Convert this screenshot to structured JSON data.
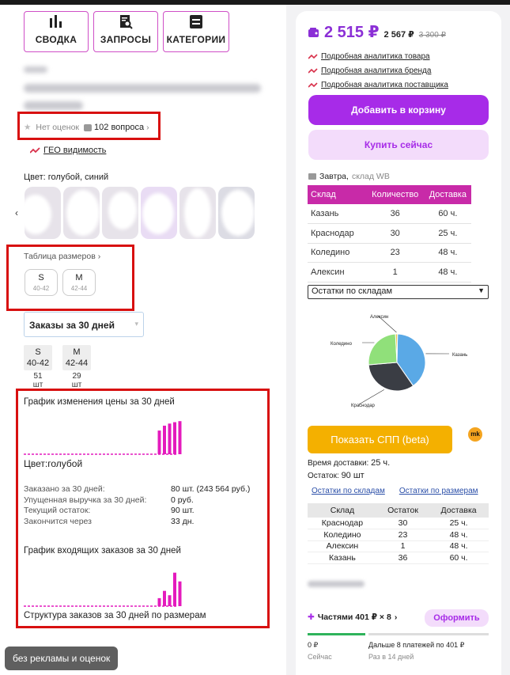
{
  "nav": {
    "summary": "СВОДКА",
    "queries": "ЗАПРОСЫ",
    "categories": "КАТЕГОРИИ"
  },
  "product": {
    "ratings": "Нет оценок",
    "questions": "102 вопроса",
    "geo": "ГЕО видимость",
    "color": "Цвет: голубой, синий",
    "size_table": "Таблица размеров",
    "sizes": [
      {
        "size": "S",
        "range": "40-42"
      },
      {
        "size": "M",
        "range": "42-44"
      }
    ]
  },
  "orders": {
    "period_select": "Заказы за 30 дней",
    "sizes": [
      {
        "size": "S",
        "range": "40-42",
        "count": "51",
        "unit": "шт"
      },
      {
        "size": "M",
        "range": "42-44",
        "count": "29",
        "unit": "шт"
      }
    ],
    "price_chart_title": "График изменения цены за 30 дней",
    "color_label": "Цвет:",
    "color_value": "голубой",
    "stats": [
      {
        "label": "Заказано за 30 дней:",
        "value": "80 шт. (243 564 руб.)"
      },
      {
        "label": "Упущенная выручка за 30 дней:",
        "value": "0 руб."
      },
      {
        "label": "Текущий остаток:",
        "value": "90 шт."
      },
      {
        "label": "Закончится через",
        "value": "33 дн."
      }
    ],
    "incoming_title": "График входящих заказов за 30 дней",
    "structure_title": "Структура заказов за 30 дней по размерам",
    "price_bars": [
      0.68,
      0.82,
      0.88,
      0.92,
      0.95
    ],
    "order_bars": [
      0.22,
      0.42,
      0.3,
      0.92,
      0.68
    ]
  },
  "toast": "без рекламы и оценок",
  "sidebar": {
    "price": "2 515 ₽",
    "price_card": "2 567 ₽",
    "price_old": "3 300 ₽",
    "links": [
      "Подробная аналитика товара",
      "Подробная аналитика бренда",
      "Подробная аналитика поставщика"
    ],
    "add_to_cart": "Добавить в корзину",
    "buy_now": "Купить сейчас",
    "delivery": "Завтра,",
    "warehouse": "склад WB",
    "stock_table": {
      "headers": [
        "Склад",
        "Количество",
        "Доставка"
      ],
      "rows": [
        [
          "Казань",
          "36",
          "60 ч."
        ],
        [
          "Краснодар",
          "30",
          "25 ч."
        ],
        [
          "Коледино",
          "23",
          "48 ч."
        ],
        [
          "Алексин",
          "1",
          "48 ч."
        ]
      ]
    },
    "stock_select": "Остатки по складам",
    "spp_button": "Показать СПП (beta)",
    "mk_badge": "mk",
    "delivery_time_label": "Время доставки:",
    "delivery_time_value": "25 ч.",
    "stock_label": "Остаток:",
    "stock_value": "90 шт",
    "tab_warehouses": "Остатки по складам",
    "tab_sizes": "Остатки по размерам",
    "stock_table2": {
      "headers": [
        "Склад",
        "Остаток",
        "Доставка"
      ],
      "rows": [
        [
          "Краснодар",
          "30",
          "25 ч."
        ],
        [
          "Коледино",
          "23",
          "48 ч."
        ],
        [
          "Алексин",
          "1",
          "48 ч."
        ],
        [
          "Казань",
          "36",
          "60 ч."
        ]
      ]
    },
    "installments": "Частями 401 ₽ × 8",
    "installments_button": "Оформить",
    "pay_now_value": "0 ₽",
    "pay_now_label": "Сейчас",
    "pay_later_value": "Дальше 8 платежей по 401 ₽",
    "pay_later_label": "Раз в 14 дней"
  },
  "chart_data": {
    "type": "pie",
    "categories": [
      "Казань",
      "Краснодар",
      "Коледино",
      "Алексин"
    ],
    "values": [
      36,
      30,
      23,
      1
    ],
    "colors": [
      "#5aa9e6",
      "#3a3d44",
      "#90e07a",
      "#e6c24a"
    ]
  },
  "colors": {
    "accent": "#a72be8",
    "table_header": "#c82aa8",
    "highlight": "#d81010",
    "bars": "#e41bbd"
  }
}
